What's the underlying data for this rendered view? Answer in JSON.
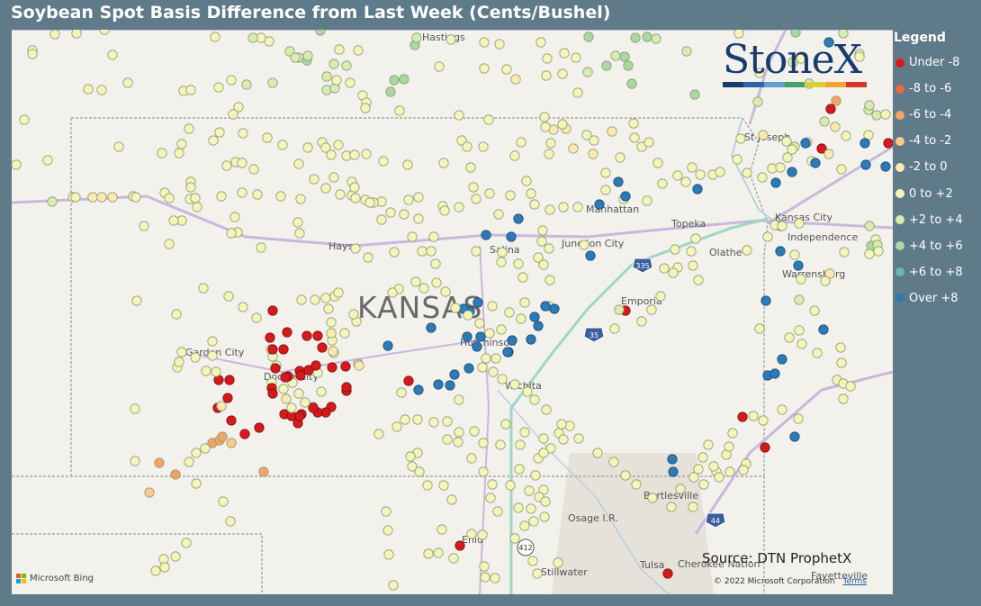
{
  "title": "Soybean Spot Basis Difference from Last Week (Cents/Bushel)",
  "legend": {
    "title": "Legend",
    "items": [
      {
        "label": "Under -8",
        "color": "#d7191c"
      },
      {
        "label": "-8 to -6",
        "color": "#ea6a3a"
      },
      {
        "label": "-6 to -4",
        "color": "#f4a364"
      },
      {
        "label": "-4 to -2",
        "color": "#fbc98a"
      },
      {
        "label": "-2 to 0",
        "color": "#fde9b0"
      },
      {
        "label": "0 to +2",
        "color": "#f3f6b8"
      },
      {
        "label": "+2 to +4",
        "color": "#d6ecb0"
      },
      {
        "label": "+4 to +6",
        "color": "#a8d9a1"
      },
      {
        "label": "+6 to +8",
        "color": "#6db6a8"
      },
      {
        "label": "Over +8",
        "color": "#2c7bb6"
      }
    ]
  },
  "logo": {
    "text": "StoneX",
    "bar_colors": [
      "#1a3b6e",
      "#2b64a8",
      "#5fa0d0",
      "#3fa36a",
      "#d9cf3b",
      "#f0a33a",
      "#d7342b"
    ]
  },
  "source": "Source: DTN ProphetX",
  "map": {
    "state_label": "KANSAS",
    "places": [
      {
        "name": "Hastings"
      },
      {
        "name": "St Joseph"
      },
      {
        "name": "Manhattan"
      },
      {
        "name": "Topeka"
      },
      {
        "name": "Kansas City"
      },
      {
        "name": "Independence"
      },
      {
        "name": "Hays"
      },
      {
        "name": "Salina"
      },
      {
        "name": "Junction City"
      },
      {
        "name": "Olathe"
      },
      {
        "name": "Warrensburg"
      },
      {
        "name": "Emporia"
      },
      {
        "name": "Garden City"
      },
      {
        "name": "Dodge City"
      },
      {
        "name": "Hutchinson"
      },
      {
        "name": "Wichita"
      },
      {
        "name": "Bartlesville"
      },
      {
        "name": "Osage I.R."
      },
      {
        "name": "Enid"
      },
      {
        "name": "Stillwater"
      },
      {
        "name": "Tulsa"
      },
      {
        "name": "Cherokee Nation"
      },
      {
        "name": "Fayetteville"
      }
    ],
    "shields": [
      "335",
      "35",
      "412",
      "44"
    ],
    "attribution": {
      "provider": "Microsoft Bing",
      "copyright": "© 2022 Microsoft Corporation",
      "terms": "Terms"
    }
  }
}
